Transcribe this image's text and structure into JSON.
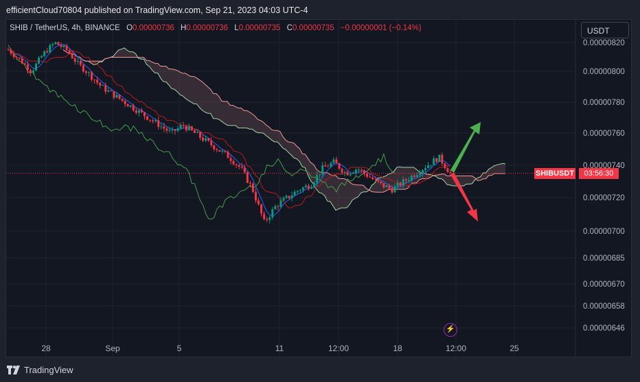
{
  "header": {
    "publisher": "efficientCloud70804 published on TradingView.com, Sep 21, 2023 04:03 UTC-4"
  },
  "legend": {
    "symbol": "SHIB / TetherUS, 4h, BINANCE",
    "o_label": "O",
    "o_value": "0.00000736",
    "h_label": "H",
    "h_value": "0.00000736",
    "l_label": "L",
    "l_value": "0.00000735",
    "c_label": "C",
    "c_value": "0.00000735",
    "change": "−0.00000001 (−0.14%)"
  },
  "currency_button": {
    "label": "USDT"
  },
  "price_tag": {
    "symbol": "SHIBUSDT",
    "countdown": "03:56:30"
  },
  "event_icon": {
    "glyph": "⚡"
  },
  "footer": {
    "brand": "TradingView"
  },
  "colors": {
    "up": "#089981",
    "down": "#f23645",
    "conversion": "#2962ff",
    "base": "#b71c1c",
    "lagging": "#43a047",
    "span_a": "#a5d6a7",
    "span_b": "#ef9a9a",
    "arrow_up": "#4caf50",
    "arrow_down": "#f23645"
  },
  "chart_data": {
    "type": "candlestick",
    "title": "SHIB / TetherUS, 4h, BINANCE",
    "indicators": [
      "Ichimoku Cloud"
    ],
    "y_ticks": [
      "0.00000820",
      "0.00000800",
      "0.00000780",
      "0.00000760",
      "0.00000740",
      "0.00000720",
      "0.00000700",
      "0.00000685",
      "0.00000670",
      "0.00000658",
      "0.00000646"
    ],
    "x_ticks": [
      "28",
      "Sep",
      "5",
      "11",
      "12:00",
      "18",
      "12:00",
      "25"
    ],
    "ylim": [
      6.46e-06,
      8.28e-06
    ],
    "y_scale": "log",
    "last_price": 7.35e-06,
    "close_approx": [
      8.15e-06,
      8.08e-06,
      8e-06,
      8.12e-06,
      8.2e-06,
      8.15e-06,
      8.05e-06,
      7.98e-06,
      7.9e-06,
      7.85e-06,
      7.8e-06,
      7.75e-06,
      7.7e-06,
      7.65e-06,
      7.6e-06,
      7.65e-06,
      7.6e-06,
      7.55e-06,
      7.5e-06,
      7.45e-06,
      7.38e-06,
      7.25e-06,
      7.05e-06,
      7.15e-06,
      7.2e-06,
      7.25e-06,
      7.28e-06,
      7.38e-06,
      7.42e-06,
      7.35e-06,
      7.38e-06,
      7.33e-06,
      7.28e-06,
      7.25e-06,
      7.3e-06,
      7.35e-06,
      7.4e-06,
      7.45e-06,
      7.35e-06
    ],
    "annotations": [
      "arrow up (green)",
      "arrow down (red)"
    ]
  }
}
